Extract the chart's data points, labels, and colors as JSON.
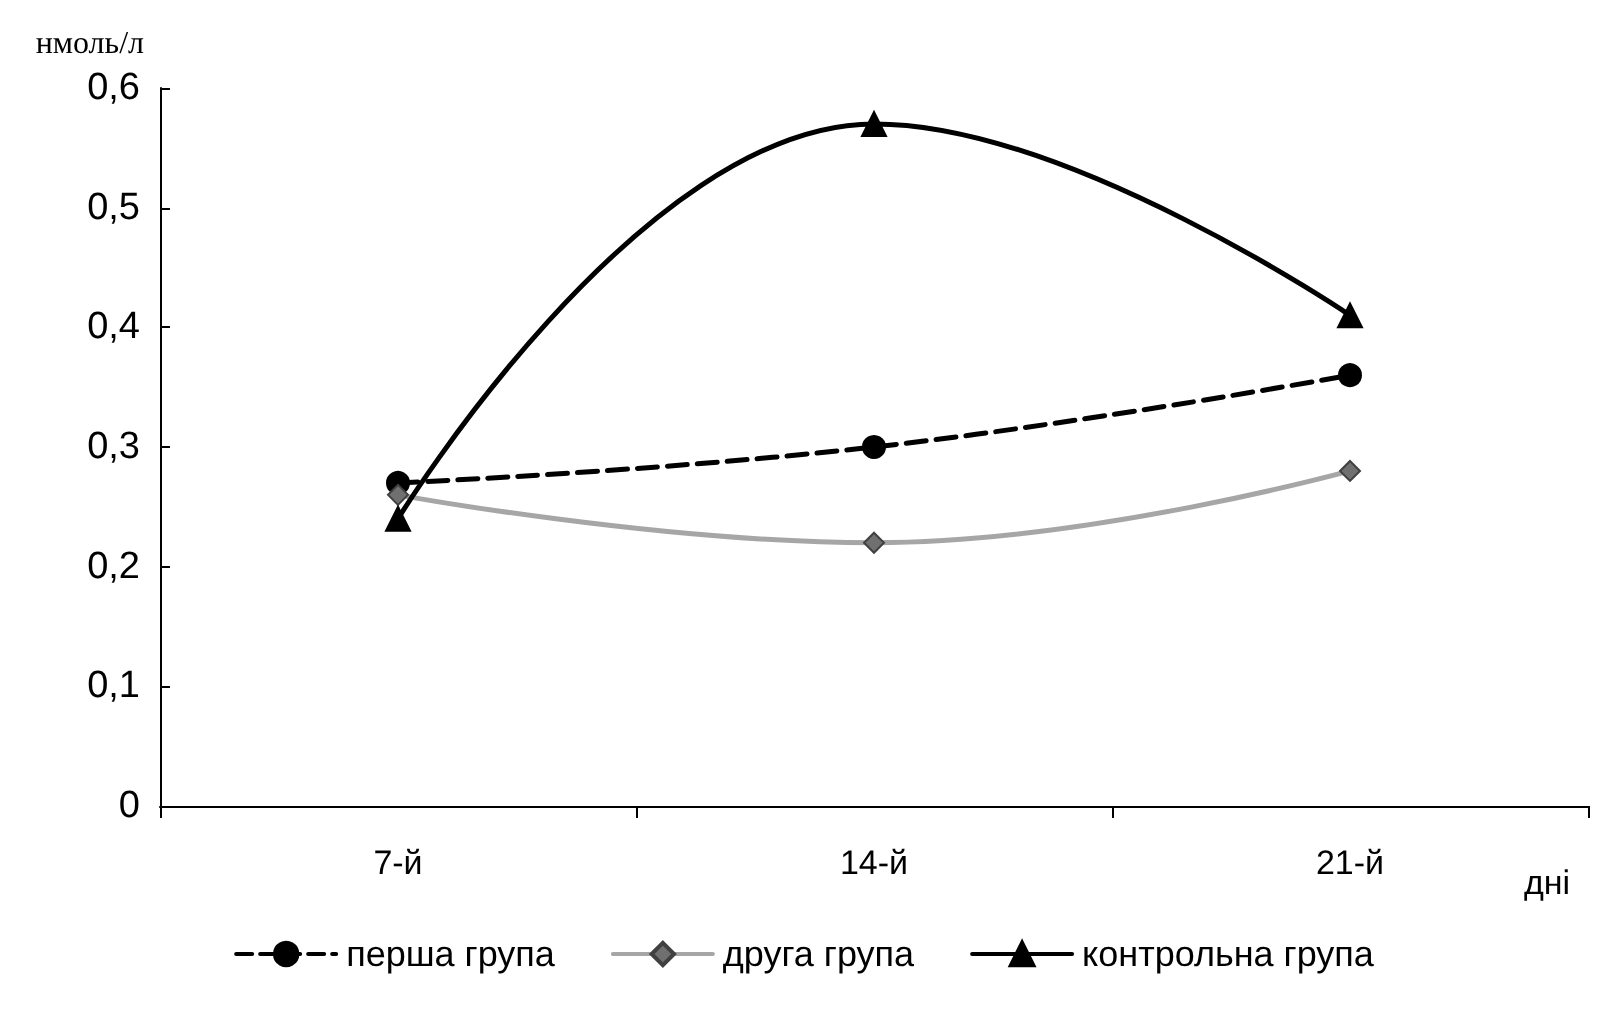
{
  "chart_data": {
    "type": "line",
    "ylabel": "нмоль/л",
    "xlabel": "дні",
    "categories": [
      "7-й",
      "14-й",
      "21-й"
    ],
    "series": [
      {
        "name": "перша група",
        "color": "#000000",
        "values": [
          0.27,
          0.3,
          0.36
        ],
        "marker": "circle",
        "line_style": "dashed"
      },
      {
        "name": "друга група",
        "color": "#a6a6a6",
        "values": [
          0.26,
          0.22,
          0.28
        ],
        "marker": "diamond",
        "line_style": "solid"
      },
      {
        "name": "контрольна група",
        "color": "#000000",
        "values": [
          0.24,
          0.57,
          0.41
        ],
        "marker": "triangle",
        "line_style": "solid"
      }
    ],
    "ylim": [
      0,
      0.6
    ],
    "yticks": [
      0,
      {
        "value": 0.1,
        "label": "0,1"
      },
      {
        "value": 0.2,
        "label": "0,2"
      },
      {
        "value": 0.3,
        "label": "0,3"
      },
      {
        "value": 0.4,
        "label": "0,4"
      },
      {
        "value": 0.5,
        "label": "0,5"
      },
      {
        "value": 0.6,
        "label": "0,6"
      }
    ],
    "grid": false,
    "legend": "bottom"
  }
}
